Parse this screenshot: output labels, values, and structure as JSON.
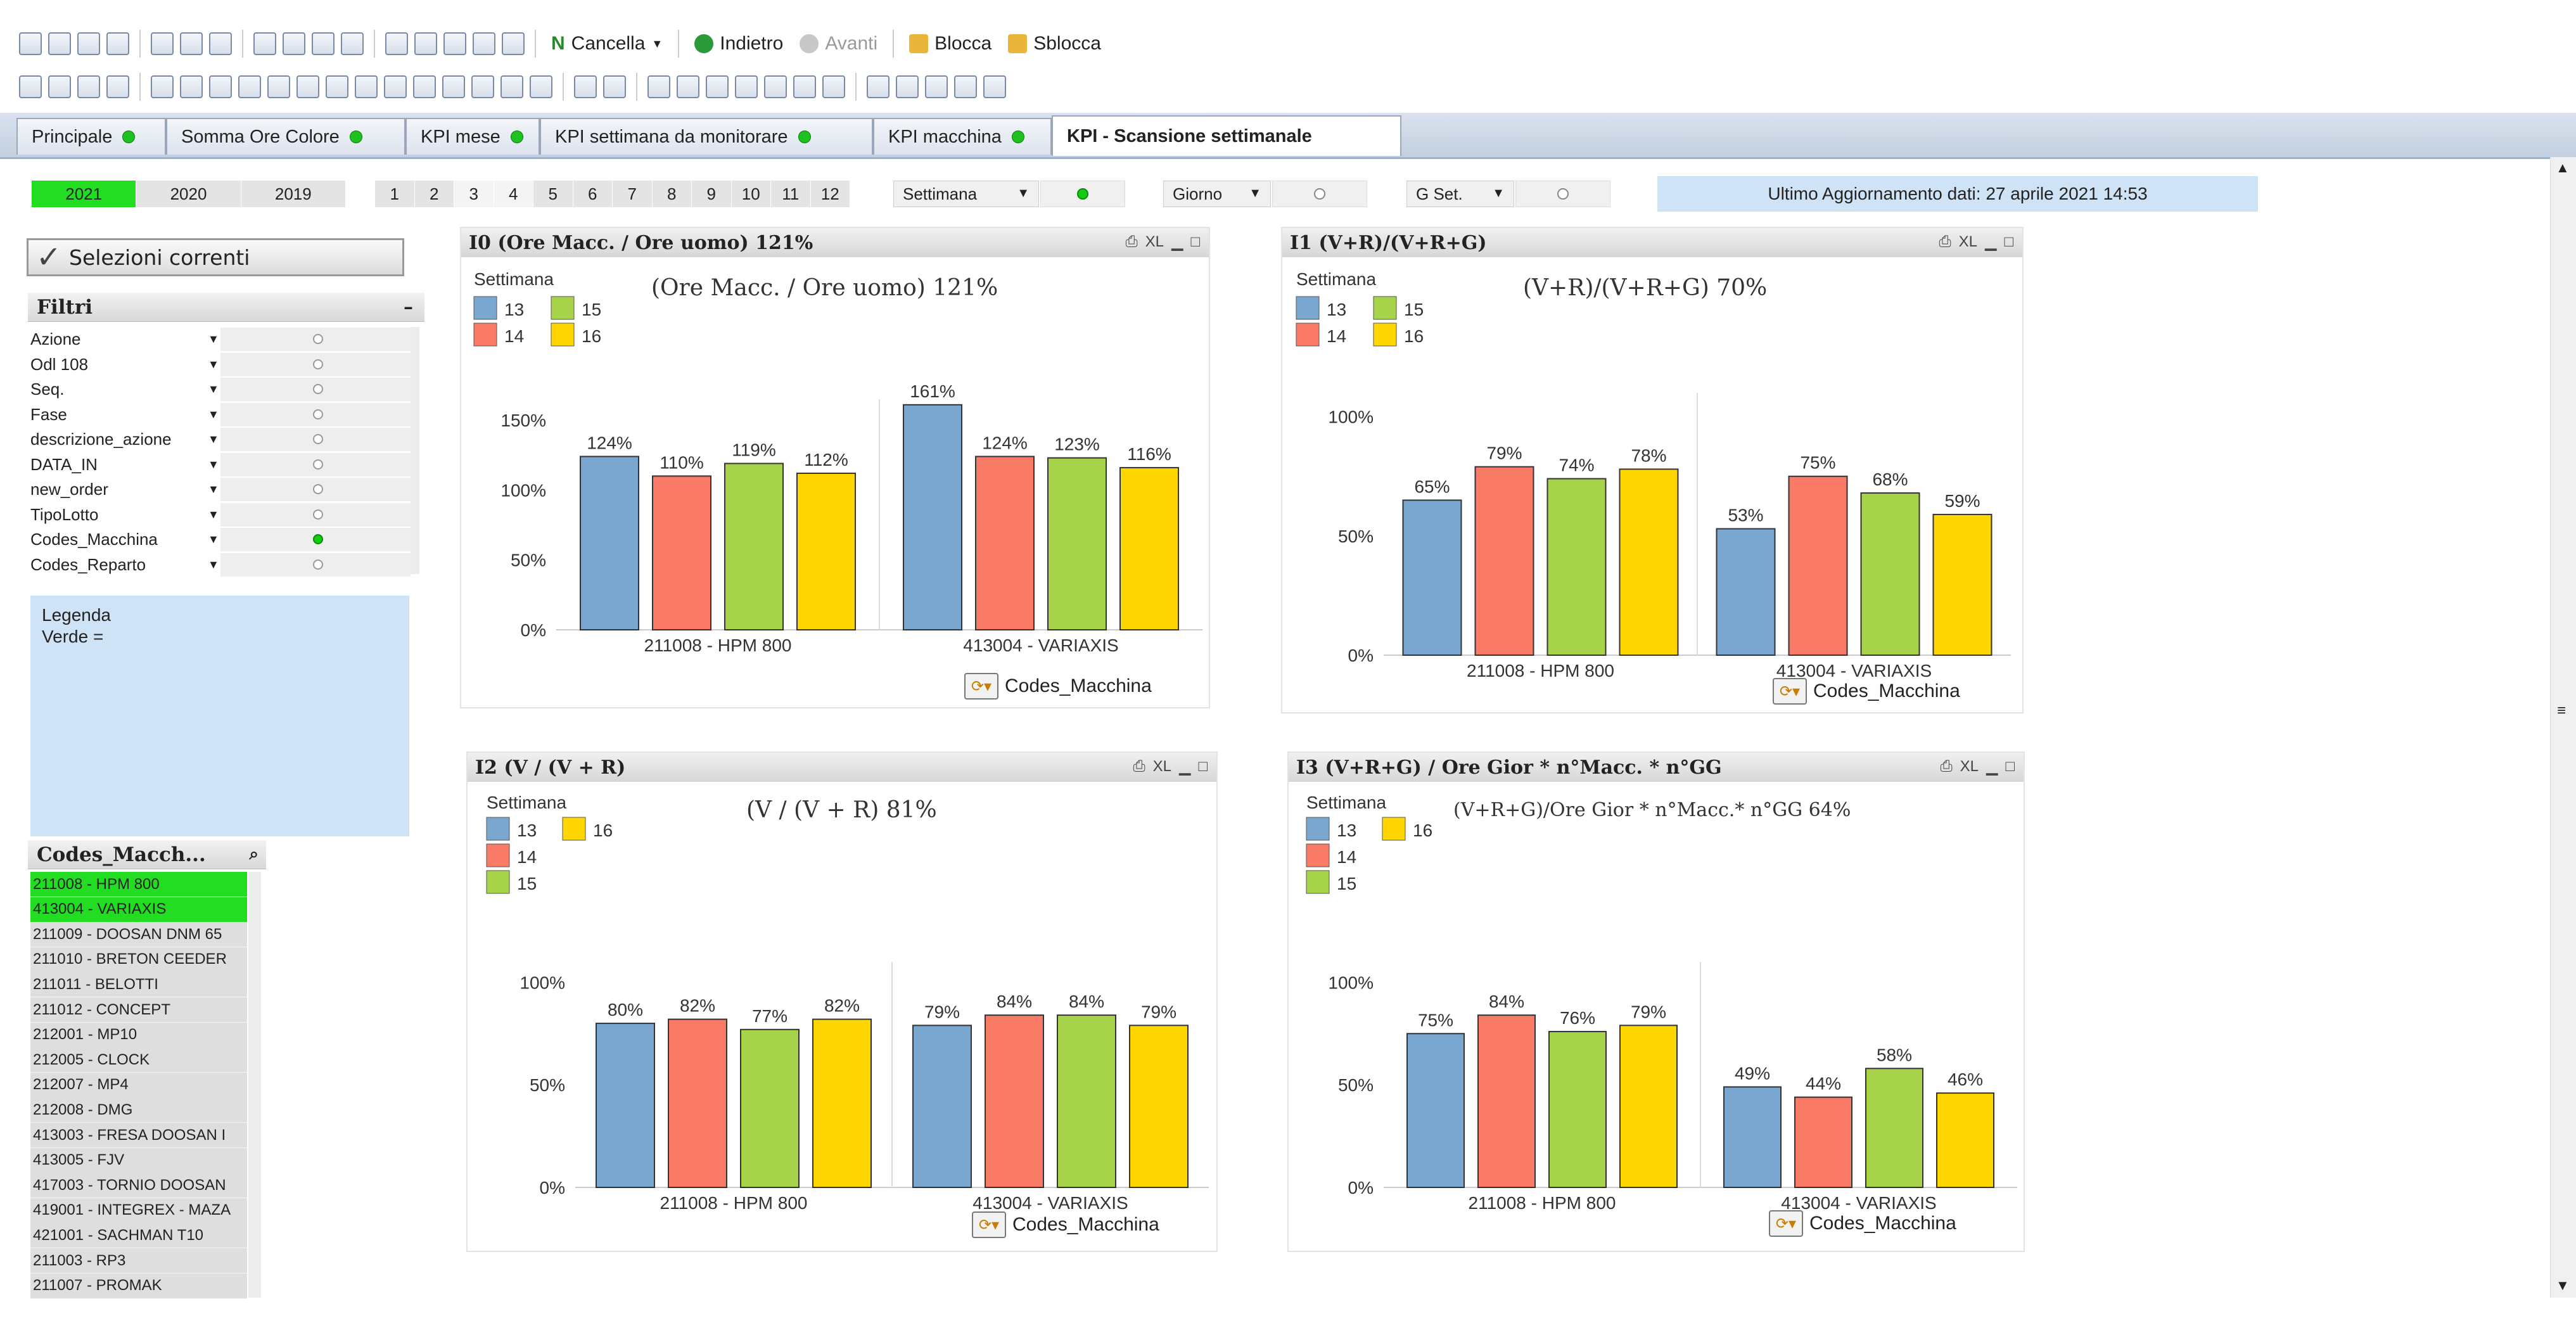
{
  "toolbar1": {
    "cancel_label": "Cancella",
    "back_label": "Indietro",
    "forward_label": "Avanti",
    "lock_label": "Blocca",
    "unlock_label": "Sblocca"
  },
  "tabs": [
    {
      "label": "Principale",
      "dot": true
    },
    {
      "label": "Somma Ore Colore",
      "dot": true
    },
    {
      "label": "KPI mese",
      "dot": true
    },
    {
      "label": "KPI settimana da monitorare",
      "dot": true
    },
    {
      "label": "KPI macchina",
      "dot": true
    },
    {
      "label": "KPI - Scansione settimanale",
      "dot": false,
      "active": true
    }
  ],
  "years": [
    "2021",
    "2020",
    "2019"
  ],
  "months": [
    "1",
    "2",
    "3",
    "4",
    "5",
    "6",
    "7",
    "8",
    "9",
    "10",
    "11",
    "12"
  ],
  "selectors": {
    "settimana": "Settimana",
    "giorno": "Giorno",
    "gset": "G Set."
  },
  "last_update": "Ultimo Aggiornamento dati: 27 aprile 2021  14:53",
  "current_selections_label": "Selezioni correnti",
  "filters": {
    "title": "Filtri",
    "items": [
      {
        "name": "Azione",
        "active": false
      },
      {
        "name": "Odl 108",
        "active": false
      },
      {
        "name": "Seq.",
        "active": false
      },
      {
        "name": "Fase",
        "active": false
      },
      {
        "name": "descrizione_azione",
        "active": false
      },
      {
        "name": "DATA_IN",
        "active": false
      },
      {
        "name": "new_order",
        "active": false
      },
      {
        "name": "TipoLotto",
        "active": false
      },
      {
        "name": "Codes_Macchina",
        "active": true
      },
      {
        "name": "Codes_Reparto",
        "active": false
      }
    ]
  },
  "legend": {
    "line1": "Legenda",
    "line2": "Verde ="
  },
  "machines_list": {
    "title": "Codes_Macch...",
    "items": [
      {
        "label": "211008 - HPM 800",
        "selected": true
      },
      {
        "label": "413004 - VARIAXIS",
        "selected": true
      },
      {
        "label": "211009 - DOOSAN DNM 65",
        "selected": false
      },
      {
        "label": "211010 - BRETON CEEDER",
        "selected": false
      },
      {
        "label": "211011 - BELOTTI",
        "selected": false
      },
      {
        "label": "211012 - CONCEPT",
        "selected": false
      },
      {
        "label": "212001 - MP10",
        "selected": false
      },
      {
        "label": "212005 - CLOCK",
        "selected": false
      },
      {
        "label": "212007 - MP4",
        "selected": false
      },
      {
        "label": "212008 - DMG",
        "selected": false
      },
      {
        "label": "413003 - FRESA DOOSAN I",
        "selected": false
      },
      {
        "label": "413005 - FJV",
        "selected": false
      },
      {
        "label": "417003 - TORNIO DOOSAN",
        "selected": false
      },
      {
        "label": "419001 - INTEGREX - MAZA",
        "selected": false
      },
      {
        "label": "421001 - SACHMAN T10",
        "selected": false
      },
      {
        "label": "211003 - RP3",
        "selected": false
      },
      {
        "label": "211007 - PROMAK",
        "selected": false
      }
    ]
  },
  "colors": {
    "week13": "#7aa7cf",
    "week14": "#f97a66",
    "week15": "#a6d34a",
    "week16": "#ffd600",
    "selected_green": "#22dd22",
    "info_blue": "#cfe3f6"
  },
  "panel_footer_label": "Codes_Macchina",
  "chart_data": [
    {
      "type": "bar",
      "panel_title": "I0 (Ore Macc. /  Ore uomo)  121%",
      "title": "(Ore Macc. /  Ore uomo)  121%",
      "legend_title": "Settimana",
      "categories": [
        "211008 - HPM 800",
        "413004 - VARIAXIS"
      ],
      "series": [
        {
          "name": "13",
          "values": [
            124,
            161
          ]
        },
        {
          "name": "14",
          "values": [
            110,
            124
          ]
        },
        {
          "name": "15",
          "values": [
            119,
            123
          ]
        },
        {
          "name": "16",
          "values": [
            112,
            116
          ]
        }
      ],
      "yticks": [
        "0%",
        "50%",
        "100%",
        "150%"
      ],
      "ylim": [
        0,
        165
      ]
    },
    {
      "type": "bar",
      "panel_title": "I1 (V+R)/(V+R+G)",
      "title": "(V+R)/(V+R+G) 70%",
      "legend_title": "Settimana",
      "categories": [
        "211008 - HPM 800",
        "413004 - VARIAXIS"
      ],
      "series": [
        {
          "name": "13",
          "values": [
            65,
            53
          ]
        },
        {
          "name": "14",
          "values": [
            79,
            75
          ]
        },
        {
          "name": "15",
          "values": [
            74,
            68
          ]
        },
        {
          "name": "16",
          "values": [
            78,
            59
          ]
        }
      ],
      "yticks": [
        "0%",
        "50%",
        "100%"
      ],
      "ylim": [
        0,
        110
      ]
    },
    {
      "type": "bar",
      "panel_title": "I2 (V / (V + R)",
      "title": "(V / (V + R)  81%",
      "legend_title": "Settimana",
      "categories": [
        "211008 - HPM 800",
        "413004 - VARIAXIS"
      ],
      "series": [
        {
          "name": "13",
          "values": [
            80,
            79
          ]
        },
        {
          "name": "14",
          "values": [
            82,
            84
          ]
        },
        {
          "name": "15",
          "values": [
            77,
            84
          ]
        },
        {
          "name": "16",
          "values": [
            82,
            79
          ]
        }
      ],
      "yticks": [
        "0%",
        "50%",
        "100%"
      ],
      "ylim": [
        0,
        110
      ]
    },
    {
      "type": "bar",
      "panel_title": "I3 (V+R+G) / Ore Gior * n°Macc. * n°GG",
      "title": "(V+R+G)/Ore Gior * n°Macc.* n°GG  64%",
      "legend_title": "Settimana",
      "categories": [
        "211008 - HPM 800",
        "413004 - VARIAXIS"
      ],
      "series": [
        {
          "name": "13",
          "values": [
            75,
            49
          ]
        },
        {
          "name": "14",
          "values": [
            84,
            44
          ]
        },
        {
          "name": "15",
          "values": [
            76,
            58
          ]
        },
        {
          "name": "16",
          "values": [
            79,
            46
          ]
        }
      ],
      "yticks": [
        "0%",
        "50%",
        "100%"
      ],
      "ylim": [
        0,
        110
      ]
    }
  ]
}
